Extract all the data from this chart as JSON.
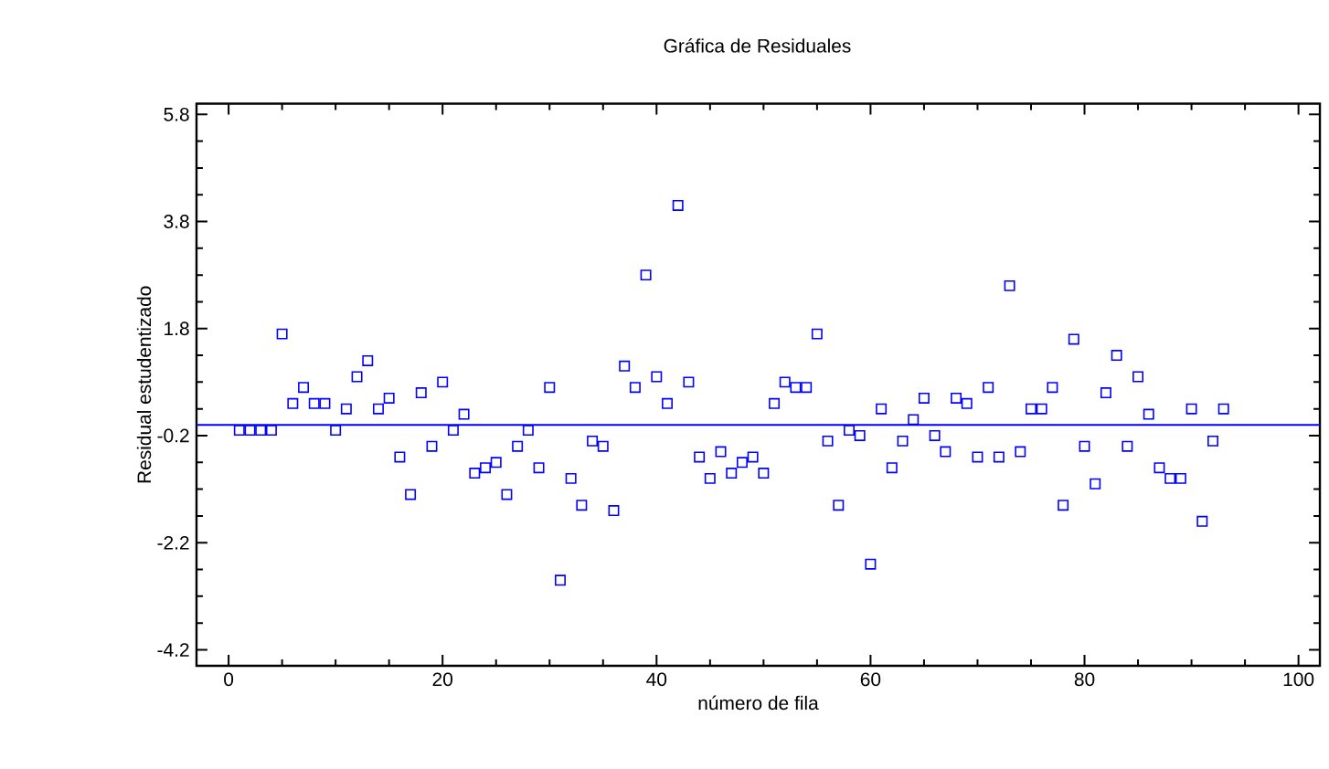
{
  "chart_data": {
    "type": "scatter",
    "title": "Gráfica de Residuales",
    "xlabel": "número de fila",
    "ylabel": "Residual estudentizado",
    "x": [
      1,
      2,
      3,
      4,
      5,
      6,
      7,
      8,
      9,
      10,
      11,
      12,
      13,
      14,
      15,
      16,
      17,
      18,
      19,
      20,
      21,
      22,
      23,
      24,
      25,
      26,
      27,
      28,
      29,
      30,
      31,
      32,
      33,
      34,
      35,
      36,
      37,
      38,
      39,
      40,
      41,
      42,
      43,
      44,
      45,
      46,
      47,
      48,
      49,
      50,
      51,
      52,
      53,
      54,
      55,
      56,
      57,
      58,
      59,
      60,
      61,
      62,
      63,
      64,
      65,
      66,
      67,
      68,
      69,
      70,
      71,
      72,
      73,
      74,
      75,
      76,
      77,
      78,
      79,
      80,
      81,
      82,
      83,
      84,
      85,
      86,
      87,
      88,
      89,
      90,
      91,
      92,
      93
    ],
    "values": [
      -0.1,
      -0.1,
      -0.1,
      -0.1,
      1.7,
      0.4,
      0.7,
      0.4,
      0.4,
      -0.1,
      0.3,
      0.9,
      1.2,
      0.3,
      0.5,
      -0.6,
      -1.3,
      0.6,
      -0.4,
      0.8,
      -0.1,
      0.2,
      -0.9,
      -0.8,
      -0.7,
      -1.3,
      -0.4,
      -0.1,
      -0.8,
      0.7,
      -2.9,
      -1.0,
      -1.5,
      -0.3,
      -0.4,
      -1.6,
      1.1,
      0.7,
      2.8,
      0.9,
      0.4,
      4.1,
      0.8,
      -0.6,
      -1.0,
      -0.5,
      -0.9,
      -0.7,
      -0.6,
      -0.9,
      0.4,
      0.8,
      0.7,
      0.7,
      1.7,
      -0.3,
      -1.5,
      -0.1,
      -0.2,
      -2.6,
      0.3,
      -0.8,
      -0.3,
      0.1,
      0.5,
      -0.2,
      -0.5,
      0.5,
      0.4,
      -0.6,
      0.7,
      -0.6,
      2.6,
      -0.5,
      0.3,
      0.3,
      0.7,
      -1.5,
      1.6,
      -0.4,
      -1.1,
      0.6,
      1.3,
      -0.4,
      0.9,
      0.2,
      -0.8,
      -1.0,
      -1.0,
      0.3,
      -1.8,
      -0.3,
      0.3
    ],
    "color": "#0000ff",
    "marker": "square",
    "xlim": [
      -3,
      102
    ],
    "ylim": [
      -4.5,
      6.0
    ],
    "xticks": [
      0,
      20,
      40,
      60,
      80,
      100
    ],
    "yticks": [
      -4.2,
      -2.2,
      -0.2,
      1.8,
      3.8,
      5.8
    ],
    "ref_lines": [
      {
        "axis": "y",
        "value": 0,
        "color": "#0000ff"
      }
    ]
  }
}
